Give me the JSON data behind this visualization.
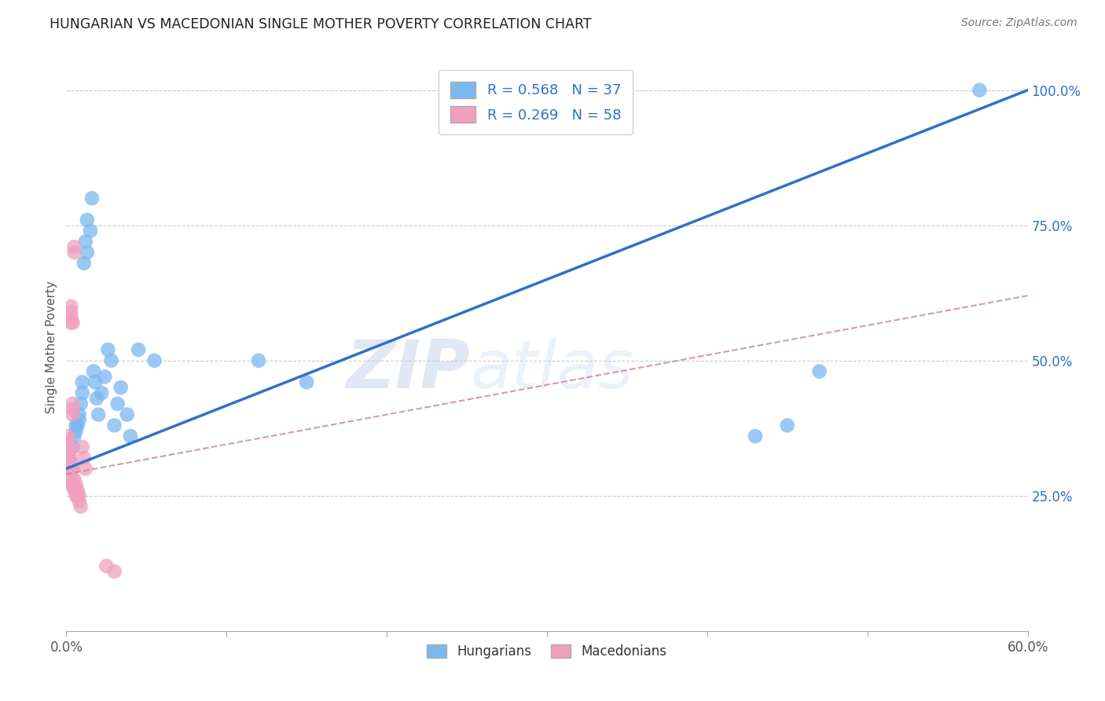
{
  "title": "HUNGARIAN VS MACEDONIAN SINGLE MOTHER POVERTY CORRELATION CHART",
  "source": "Source: ZipAtlas.com",
  "ylabel": "Single Mother Poverty",
  "legend_blue": {
    "R": "0.568",
    "N": "37"
  },
  "legend_pink": {
    "R": "0.269",
    "N": "58"
  },
  "blue_color": "#7ab8f0",
  "pink_color": "#f0a0be",
  "blue_line_color": "#3070c8",
  "pink_line_color": "#d08090",
  "watermark_zip": "ZIP",
  "watermark_atlas": "atlas",
  "blue_line_x0": 0.0,
  "blue_line_y0": 0.3,
  "blue_line_x1": 0.6,
  "blue_line_y1": 1.0,
  "pink_line_x0": 0.0,
  "pink_line_y0": 0.29,
  "pink_line_x1": 0.6,
  "pink_line_y1": 0.62,
  "blue_points_x": [
    0.004,
    0.005,
    0.006,
    0.006,
    0.007,
    0.008,
    0.008,
    0.009,
    0.01,
    0.01,
    0.011,
    0.012,
    0.013,
    0.013,
    0.015,
    0.016,
    0.017,
    0.018,
    0.019,
    0.02,
    0.022,
    0.024,
    0.026,
    0.028,
    0.03,
    0.032,
    0.034,
    0.038,
    0.04,
    0.045,
    0.055,
    0.12,
    0.15,
    0.43,
    0.45,
    0.47,
    0.57
  ],
  "blue_points_y": [
    0.34,
    0.36,
    0.37,
    0.38,
    0.38,
    0.4,
    0.39,
    0.42,
    0.44,
    0.46,
    0.68,
    0.72,
    0.7,
    0.76,
    0.74,
    0.8,
    0.48,
    0.46,
    0.43,
    0.4,
    0.44,
    0.47,
    0.52,
    0.5,
    0.38,
    0.42,
    0.45,
    0.4,
    0.36,
    0.52,
    0.5,
    0.5,
    0.46,
    0.36,
    0.38,
    0.48,
    1.0
  ],
  "pink_points_x": [
    0.001,
    0.001,
    0.001,
    0.001,
    0.001,
    0.001,
    0.001,
    0.001,
    0.001,
    0.001,
    0.002,
    0.002,
    0.002,
    0.002,
    0.002,
    0.002,
    0.002,
    0.002,
    0.002,
    0.002,
    0.002,
    0.003,
    0.003,
    0.003,
    0.003,
    0.003,
    0.003,
    0.003,
    0.003,
    0.003,
    0.003,
    0.003,
    0.003,
    0.003,
    0.004,
    0.004,
    0.004,
    0.004,
    0.004,
    0.004,
    0.005,
    0.005,
    0.005,
    0.005,
    0.005,
    0.006,
    0.006,
    0.006,
    0.007,
    0.007,
    0.008,
    0.008,
    0.009,
    0.01,
    0.011,
    0.012,
    0.025,
    0.03
  ],
  "pink_points_y": [
    0.33,
    0.34,
    0.35,
    0.36,
    0.32,
    0.33,
    0.3,
    0.32,
    0.34,
    0.31,
    0.3,
    0.32,
    0.29,
    0.31,
    0.33,
    0.28,
    0.3,
    0.29,
    0.31,
    0.32,
    0.33,
    0.28,
    0.3,
    0.31,
    0.27,
    0.29,
    0.3,
    0.27,
    0.28,
    0.3,
    0.57,
    0.59,
    0.58,
    0.6,
    0.57,
    0.28,
    0.3,
    0.4,
    0.42,
    0.41,
    0.7,
    0.71,
    0.28,
    0.27,
    0.26,
    0.26,
    0.27,
    0.25,
    0.25,
    0.26,
    0.24,
    0.25,
    0.23,
    0.34,
    0.32,
    0.3,
    0.12,
    0.11
  ],
  "xlim": [
    0.0,
    0.6
  ],
  "ylim": [
    0.0,
    1.05
  ],
  "xticks": [
    0.0,
    0.1,
    0.2,
    0.3,
    0.4,
    0.5,
    0.6
  ],
  "yticks": [
    0.25,
    0.5,
    0.75,
    1.0
  ],
  "ytick_labels": [
    "25.0%",
    "50.0%",
    "75.0%",
    "100.0%"
  ],
  "gridline_y": [
    0.25,
    0.5,
    0.75,
    1.0
  ]
}
